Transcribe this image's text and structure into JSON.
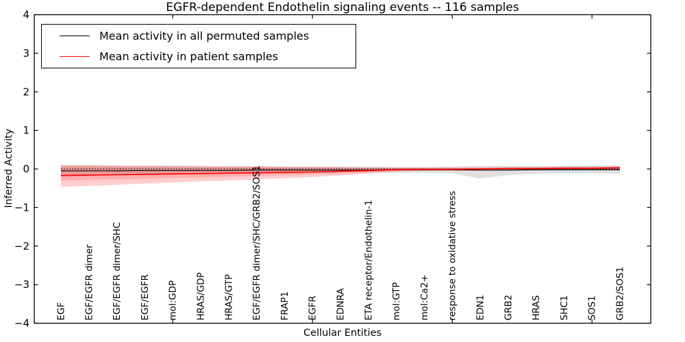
{
  "chart_data": {
    "type": "line",
    "title": "EGFR-dependent Endothelin signaling events -- 116 samples",
    "xlabel": "Cellular Entities",
    "ylabel": "Inferred Activity",
    "ylim": [
      -4,
      4
    ],
    "yticks": [
      4,
      3,
      2,
      1,
      0,
      -1,
      -2,
      -3,
      -4
    ],
    "ytick_labels": [
      "4",
      "3",
      "2",
      "1",
      "0",
      "−1",
      "−2",
      "−3",
      "−4"
    ],
    "x_major_tick_indices": [
      4,
      9,
      14,
      19
    ],
    "grid": false,
    "legend_position": "upper left",
    "categories": [
      "EGF",
      "EGF/EGFR dimer",
      "EGF/EGFR dimer/SHC",
      "EGF/EGFR",
      "mol:GDP",
      "HRAS/GDP",
      "HRAS/GTP",
      "EGF/EGFR dimer/SHC/GRB2/SOS1",
      "FRAP1",
      "EGFR",
      "EDNRA",
      "ETA receptor/Endothelin-1",
      "mol:GTP",
      "mol:Ca2+",
      "response to oxidative stress",
      "EDN1",
      "GRB2",
      "HRAS",
      "SHC1",
      "SOS1",
      "GRB2/SOS1"
    ],
    "series": [
      {
        "name": "Mean activity in all permuted samples",
        "color": "#000000",
        "values": [
          -0.05,
          -0.05,
          -0.05,
          -0.04,
          -0.04,
          -0.04,
          -0.04,
          -0.03,
          -0.03,
          -0.03,
          -0.03,
          -0.03,
          -0.02,
          -0.02,
          -0.02,
          -0.03,
          -0.03,
          -0.02,
          -0.02,
          -0.02,
          -0.02
        ]
      },
      {
        "name": "Mean activity in patient samples",
        "color": "#ff0000",
        "values": [
          -0.17,
          -0.16,
          -0.15,
          -0.14,
          -0.13,
          -0.12,
          -0.11,
          -0.1,
          -0.09,
          -0.08,
          -0.06,
          -0.04,
          -0.02,
          -0.01,
          -0.01,
          0.0,
          0.01,
          0.01,
          0.02,
          0.02,
          0.03
        ]
      }
    ],
    "bands": [
      {
        "name": "permuted-samples-range",
        "color": "#555555",
        "opacity": 0.18,
        "upper": [
          0.09,
          0.09,
          0.08,
          0.08,
          0.08,
          0.07,
          0.07,
          0.07,
          0.06,
          0.06,
          0.06,
          0.05,
          0.05,
          0.05,
          0.06,
          0.08,
          0.08,
          0.08,
          0.08,
          0.09,
          0.1
        ],
        "lower": [
          -0.2,
          -0.18,
          -0.16,
          -0.14,
          -0.12,
          -0.11,
          -0.1,
          -0.1,
          -0.09,
          -0.09,
          -0.09,
          -0.09,
          -0.1,
          -0.1,
          -0.11,
          -0.25,
          -0.16,
          -0.12,
          -0.11,
          -0.11,
          -0.13
        ]
      },
      {
        "name": "patient-samples-range-outer",
        "color": "#ff0000",
        "opacity": 0.2,
        "upper": [
          0.1,
          0.1,
          0.09,
          0.09,
          0.08,
          0.08,
          0.07,
          0.07,
          0.06,
          0.06,
          0.05,
          0.05,
          0.04,
          0.04,
          0.04,
          0.04,
          0.05,
          0.05,
          0.06,
          0.06,
          0.07
        ],
        "lower": [
          -0.46,
          -0.44,
          -0.41,
          -0.38,
          -0.35,
          -0.32,
          -0.3,
          -0.27,
          -0.24,
          -0.21,
          -0.17,
          -0.12,
          -0.07,
          -0.05,
          -0.05,
          -0.04,
          -0.04,
          -0.03,
          -0.03,
          -0.02,
          -0.02
        ]
      },
      {
        "name": "patient-samples-range-inner",
        "color": "#ff0000",
        "opacity": 0.15,
        "upper": [
          0.06,
          0.06,
          0.05,
          0.05,
          0.05,
          0.04,
          0.04,
          0.04,
          0.03,
          0.03,
          0.03,
          0.02,
          0.02,
          0.02,
          0.02,
          0.02,
          0.03,
          0.03,
          0.04,
          0.04,
          0.05
        ],
        "lower": [
          -0.3,
          -0.28,
          -0.27,
          -0.25,
          -0.23,
          -0.22,
          -0.2,
          -0.18,
          -0.16,
          -0.14,
          -0.11,
          -0.08,
          -0.05,
          -0.04,
          -0.03,
          -0.03,
          -0.02,
          -0.02,
          -0.01,
          -0.01,
          -0.01
        ]
      }
    ],
    "zero_line": 0
  },
  "legend": {
    "items": [
      {
        "label": "Mean activity in all permuted samples",
        "color": "#000000"
      },
      {
        "label": "Mean activity in patient samples",
        "color": "#ff0000"
      }
    ]
  }
}
